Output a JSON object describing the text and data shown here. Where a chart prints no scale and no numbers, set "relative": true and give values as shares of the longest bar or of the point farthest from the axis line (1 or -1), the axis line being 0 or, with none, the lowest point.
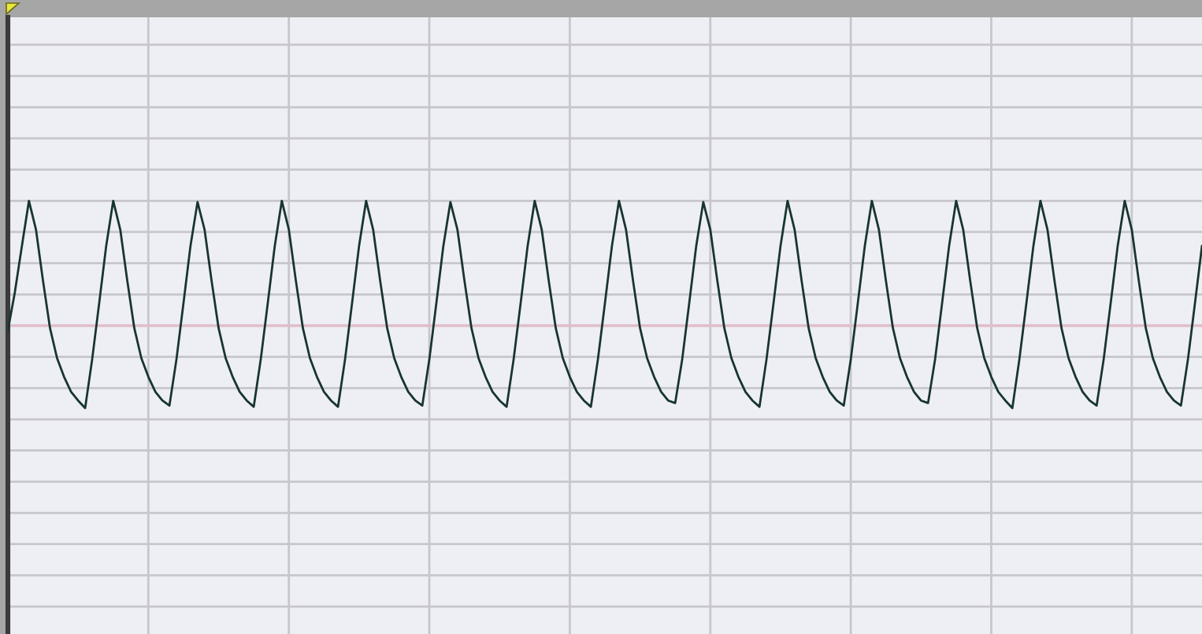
{
  "chart_data": {
    "type": "line",
    "relative": true,
    "categories": [
      null,
      null,
      null,
      null,
      null,
      null,
      null,
      null,
      null,
      null,
      null,
      null,
      null,
      null,
      null,
      null,
      null,
      null,
      null,
      null,
      null,
      null,
      null,
      null,
      null,
      null,
      null,
      null,
      null,
      null,
      null,
      null,
      null,
      null,
      null,
      null,
      null,
      null,
      null,
      null,
      null,
      null,
      null,
      null,
      null,
      null,
      null,
      null,
      null,
      null,
      null,
      null,
      null,
      null,
      null,
      null,
      null,
      null,
      null,
      null,
      null,
      null,
      null,
      null,
      null,
      null,
      null,
      null,
      null,
      null,
      null,
      null,
      null,
      null,
      null,
      null,
      null,
      null,
      null,
      null,
      null,
      null,
      null,
      null,
      null,
      null,
      null,
      null,
      null,
      null,
      null,
      null,
      null,
      null,
      null,
      null,
      null,
      null,
      null,
      null,
      null,
      null,
      null,
      null,
      null,
      null,
      null,
      null,
      null,
      null,
      null,
      null,
      null,
      null,
      null,
      null,
      null,
      null,
      null,
      null,
      null,
      null,
      null,
      null,
      null,
      null,
      null,
      null,
      null,
      null,
      null,
      null,
      null,
      null,
      null,
      null,
      null,
      null,
      null,
      null,
      null,
      null,
      null,
      null,
      null,
      null,
      null,
      null,
      null,
      null,
      null,
      null,
      null,
      null,
      null,
      null,
      null,
      null,
      null,
      null,
      null,
      null,
      null,
      null,
      null,
      null,
      null,
      null,
      null,
      null,
      null
    ],
    "series": [
      {
        "color": "#17352f",
        "values": [
          -0.04,
          0.27,
          0.64,
          1.0,
          0.77,
          0.36,
          -0.02,
          -0.26,
          -0.41,
          -0.53,
          -0.6,
          -0.66,
          -0.27,
          0.18,
          0.64,
          1.0,
          0.77,
          0.36,
          -0.02,
          -0.26,
          -0.41,
          -0.53,
          -0.6,
          -0.64,
          -0.27,
          0.18,
          0.64,
          0.99,
          0.77,
          0.36,
          -0.02,
          -0.26,
          -0.41,
          -0.53,
          -0.6,
          -0.65,
          -0.27,
          0.18,
          0.64,
          1.0,
          0.77,
          0.36,
          -0.02,
          -0.26,
          -0.41,
          -0.53,
          -0.6,
          -0.65,
          -0.27,
          0.18,
          0.64,
          1.0,
          0.77,
          0.36,
          -0.02,
          -0.26,
          -0.41,
          -0.53,
          -0.6,
          -0.64,
          -0.27,
          0.18,
          0.64,
          0.99,
          0.77,
          0.36,
          -0.02,
          -0.26,
          -0.41,
          -0.53,
          -0.6,
          -0.65,
          -0.27,
          0.18,
          0.64,
          1.0,
          0.77,
          0.36,
          -0.02,
          -0.26,
          -0.41,
          -0.53,
          -0.6,
          -0.65,
          -0.27,
          0.18,
          0.64,
          1.0,
          0.77,
          0.36,
          -0.02,
          -0.26,
          -0.41,
          -0.53,
          -0.6,
          -0.62,
          -0.27,
          0.18,
          0.64,
          0.99,
          0.77,
          0.36,
          -0.02,
          -0.26,
          -0.41,
          -0.53,
          -0.6,
          -0.65,
          -0.27,
          0.18,
          0.64,
          1.0,
          0.77,
          0.36,
          -0.02,
          -0.26,
          -0.41,
          -0.53,
          -0.6,
          -0.64,
          -0.27,
          0.18,
          0.64,
          1.0,
          0.77,
          0.36,
          -0.02,
          -0.26,
          -0.41,
          -0.53,
          -0.6,
          -0.62,
          -0.27,
          0.18,
          0.64,
          1.0,
          0.77,
          0.36,
          -0.02,
          -0.26,
          -0.41,
          -0.53,
          -0.6,
          -0.66,
          -0.27,
          0.18,
          0.64,
          1.0,
          0.77,
          0.36,
          -0.02,
          -0.26,
          -0.41,
          -0.53,
          -0.6,
          -0.64,
          -0.27,
          0.18,
          0.64,
          1.0,
          0.77,
          0.36,
          -0.02,
          -0.26,
          -0.41,
          -0.53,
          -0.6,
          -0.64,
          -0.27,
          0.18,
          0.64
        ]
      }
    ],
    "ref_lines": [
      {
        "axis": "y",
        "value": 0,
        "color": "#e4bcc8"
      }
    ],
    "grid": true
  }
}
